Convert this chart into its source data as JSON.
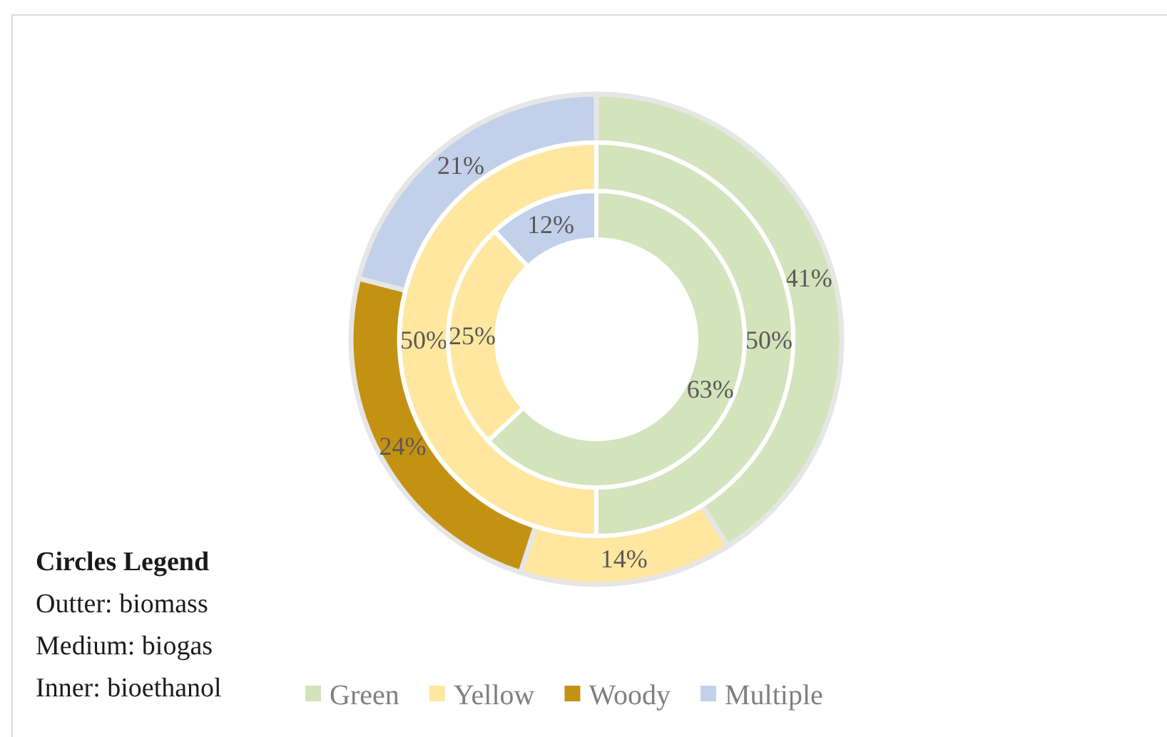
{
  "chart_data": {
    "type": "donut",
    "categories": [
      "Green",
      "Yellow",
      "Woody",
      "Multiple"
    ],
    "colors": [
      "#d3e3bb",
      "#ffe79f",
      "#c49213",
      "#c3d0ea"
    ],
    "series": [
      {
        "values": [
          41,
          14,
          24,
          21
        ],
        "value_labels": [
          "41%",
          "14%",
          "24%",
          "21%"
        ]
      },
      {
        "values": [
          50,
          50,
          null,
          null
        ],
        "value_labels": [
          "50%",
          "50%",
          null,
          null
        ]
      },
      {
        "values": [
          63,
          25,
          null,
          12
        ],
        "value_labels": [
          "63%",
          "25%",
          null,
          "12%"
        ]
      }
    ],
    "legend": "bottom",
    "annotations": [
      "Circles Legend",
      "Outter: biomass",
      "Medium: biogas",
      "Inner: bioethanol"
    ]
  }
}
